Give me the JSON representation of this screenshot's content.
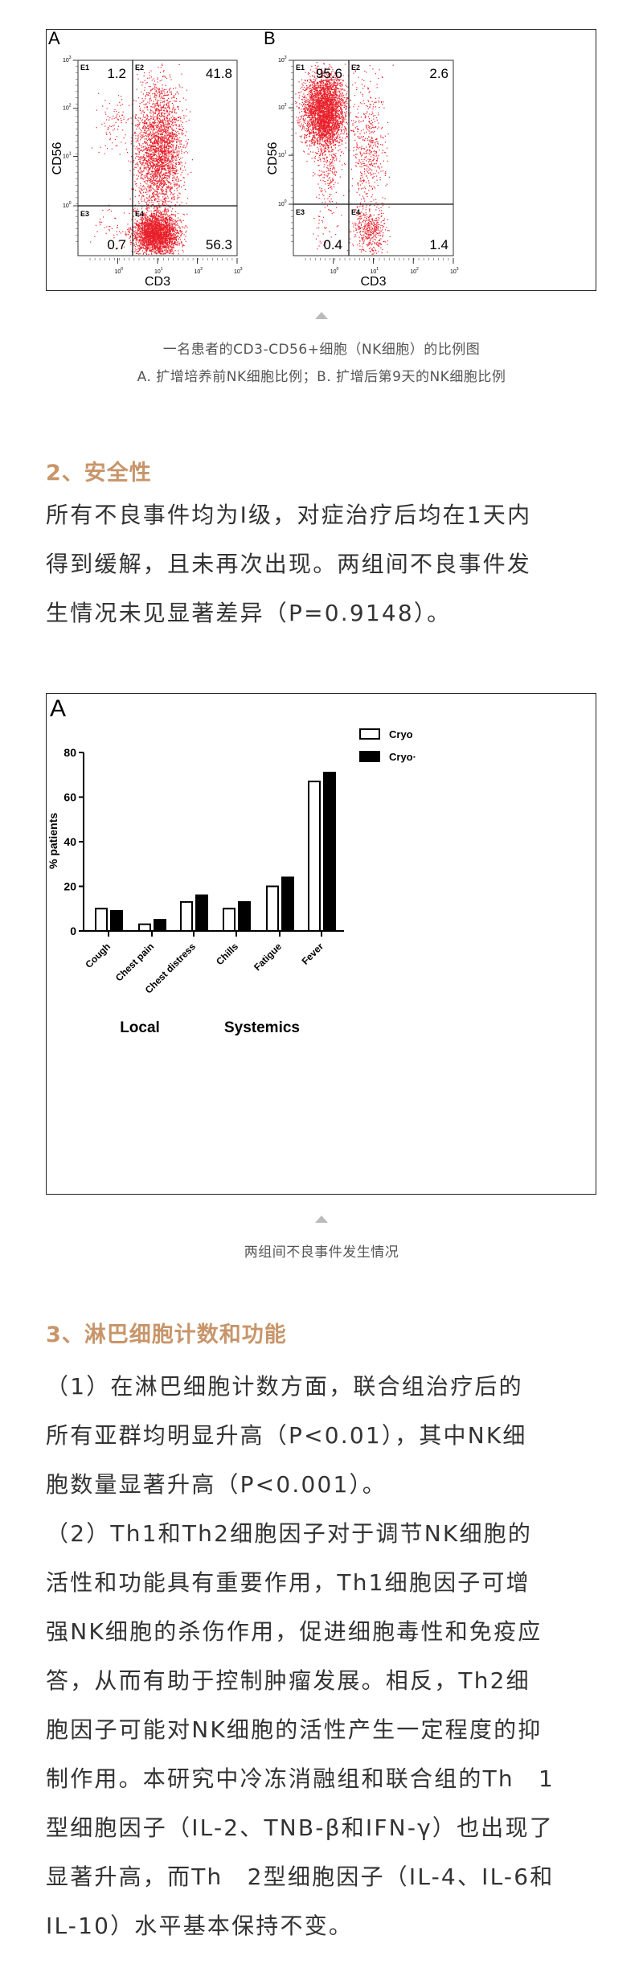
{
  "figure1": {
    "panels": [
      {
        "label": "A",
        "xlabel": "CD3",
        "ylabel": "CD56",
        "quadrants": [
          {
            "name": "E1",
            "value": "1.2"
          },
          {
            "name": "E2",
            "value": "41.8"
          },
          {
            "name": "E3",
            "value": "0.7"
          },
          {
            "name": "E4",
            "value": "56.3"
          }
        ]
      },
      {
        "label": "B",
        "xlabel": "CD3",
        "ylabel": "CD56",
        "quadrants": [
          {
            "name": "E1",
            "value": "95.6"
          },
          {
            "name": "E2",
            "value": "2.6"
          },
          {
            "name": "E3",
            "value": "0.4"
          },
          {
            "name": "E4",
            "value": "1.4"
          }
        ]
      }
    ],
    "ticks": [
      "10",
      "10",
      "10",
      "10"
    ],
    "tick_exponents": [
      "0",
      "1",
      "2",
      "3"
    ],
    "dot_color": "#e8202a",
    "caption_line1": "一名患者的CD3-CD56+细胞（NK细胞）的比例图",
    "caption_line2": "A. 扩增培养前NK细胞比例；B. 扩增后第9天的NK细胞比例"
  },
  "section2": {
    "heading": "2、安全性",
    "lines": [
      "所有不良事件均为I级，对症治疗后均在1天内",
      "得到缓解，且未再次出现。两组间不良事件发",
      "生情况未见显著差异（P=0.9148）。"
    ]
  },
  "chart_data": {
    "type": "bar",
    "panel_label": "A",
    "categories": [
      "Cough",
      "Chest pain",
      "Chest distress",
      "Chills",
      "Fatigue",
      "Fever"
    ],
    "groups": [
      {
        "label": "Local"
      },
      {
        "label": "Systemics"
      }
    ],
    "series": [
      {
        "name": "Cryo",
        "fill": "#ffffff",
        "values": [
          10,
          3,
          13,
          10,
          20,
          67
        ]
      },
      {
        "name": "Cryo·",
        "fill": "#000000",
        "values": [
          9,
          5,
          16,
          13,
          24,
          71
        ]
      }
    ],
    "ylabel": "% patients",
    "xlabel": "",
    "ylim": [
      0,
      80
    ],
    "yticks": [
      "0",
      "20",
      "40",
      "60",
      "80"
    ],
    "legend": "top-right",
    "grid": false,
    "caption": "两组间不良事件发生情况"
  },
  "section3": {
    "heading": "3、淋巴细胞计数和功能",
    "lines": [
      "（1）在淋巴细胞计数方面，联合组治疗后的",
      "所有亚群均明显升高（P<0.01），其中NK细",
      "胞数量显著升高（P<0.001）。",
      "（2）Th1和Th2细胞因子对于调节NK细胞的",
      "活性和功能具有重要作用，Th1细胞因子可增",
      "强NK细胞的杀伤作用，促进细胞毒性和免疫应",
      "答，从而有助于控制肿瘤发展。相反，Th2细",
      "胞因子可能对NK细胞的活性产生一定程度的抑",
      "制作用。本研究中冷冻消融组和联合组的Th　1",
      "型细胞因子（IL-2、TNB-β和IFN-γ）也出现了",
      "显著升高，而Th　2型细胞因子（IL-4、IL-6和",
      "IL-10）水平基本保持不变。"
    ]
  },
  "colors": {
    "heading": "#c8956a",
    "body": "#333333",
    "caption": "#555555"
  }
}
